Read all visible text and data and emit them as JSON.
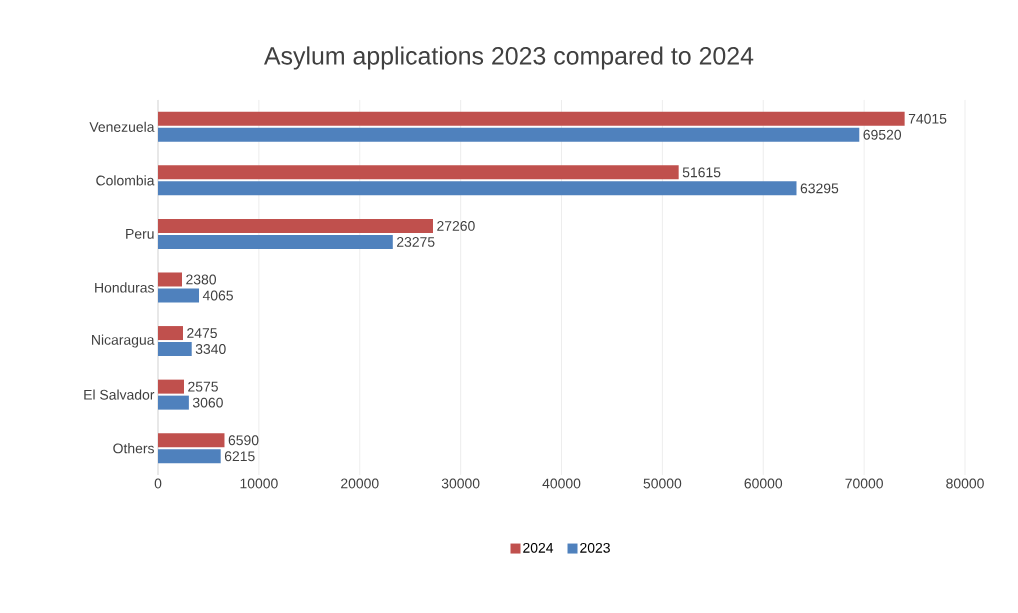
{
  "chart_data": {
    "type": "bar",
    "orientation": "horizontal",
    "title": "Asylum applications 2023 compared to 2024",
    "categories": [
      "Venezuela",
      "Colombia",
      "Peru",
      "Honduras",
      "Nicaragua",
      "El Salvador",
      "Others"
    ],
    "series": [
      {
        "name": "2024",
        "color": "#c0504d",
        "values": [
          74015,
          51615,
          27260,
          2380,
          2475,
          2575,
          6590
        ]
      },
      {
        "name": "2023",
        "color": "#4f81bd",
        "values": [
          69520,
          63295,
          23275,
          4065,
          3340,
          3060,
          6215
        ]
      }
    ],
    "xlim": [
      0,
      80000
    ],
    "xticks": [
      0,
      10000,
      20000,
      30000,
      40000,
      50000,
      60000,
      70000,
      80000
    ],
    "grid": "x",
    "legend": "bottom",
    "data_labels": true
  }
}
